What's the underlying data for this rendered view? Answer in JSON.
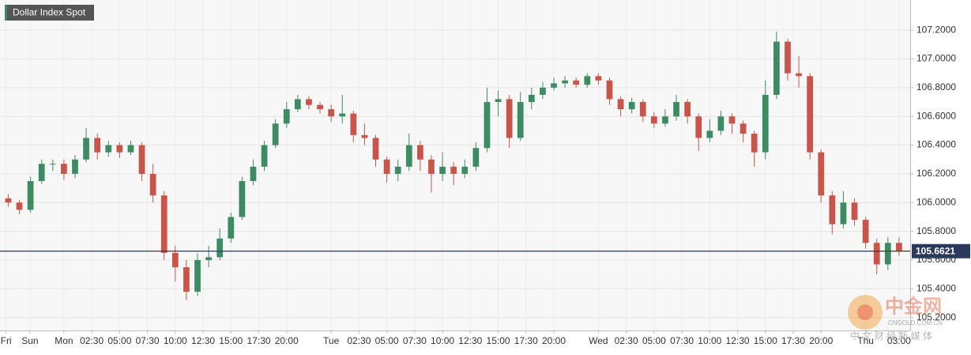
{
  "chart_data": {
    "type": "candlestick",
    "title": "Dollar Index Spot",
    "x": [
      -5,
      -4,
      -3,
      -2,
      -1,
      0,
      1,
      2,
      3,
      4,
      5,
      6,
      7,
      8,
      9,
      10,
      11,
      12,
      13,
      14,
      15,
      16,
      17,
      18,
      19,
      20,
      21,
      22,
      23,
      24,
      25,
      26,
      27,
      28,
      29,
      30,
      31,
      32,
      33,
      34,
      35,
      36,
      37,
      38,
      39,
      40,
      41,
      42,
      43,
      44,
      45,
      46,
      47,
      48,
      49,
      50,
      51,
      52,
      53,
      54,
      55,
      56,
      57,
      58,
      59,
      60,
      61,
      62,
      63,
      64,
      65,
      66,
      67,
      68,
      69,
      70,
      71,
      72,
      73,
      74,
      75
    ],
    "open": [
      106.03,
      106.0,
      105.95,
      106.15,
      106.27,
      106.27,
      106.2,
      106.3,
      106.45,
      106.35,
      106.4,
      106.35,
      106.4,
      106.2,
      106.05,
      105.65,
      105.55,
      105.38,
      105.6,
      105.62,
      105.75,
      105.9,
      106.15,
      106.25,
      106.4,
      106.55,
      106.65,
      106.72,
      106.68,
      106.65,
      106.6,
      106.62,
      106.47,
      106.45,
      106.3,
      106.2,
      106.25,
      106.4,
      106.3,
      106.2,
      106.25,
      106.2,
      106.25,
      106.38,
      106.7,
      106.72,
      106.45,
      106.7,
      106.75,
      106.8,
      106.83,
      106.85,
      106.82,
      106.88,
      106.85,
      106.72,
      106.65,
      106.7,
      106.6,
      106.55,
      106.6,
      106.7,
      106.6,
      106.45,
      106.5,
      106.6,
      106.55,
      106.48,
      106.35,
      106.75,
      107.12,
      106.9,
      106.88,
      106.35,
      106.05,
      105.85,
      106.0,
      105.88,
      105.72,
      105.57,
      105.72
    ],
    "high": [
      106.06,
      106.02,
      106.18,
      106.3,
      106.3,
      106.3,
      106.33,
      106.52,
      106.48,
      106.43,
      106.42,
      106.43,
      106.42,
      106.27,
      106.08,
      105.7,
      105.6,
      105.65,
      105.7,
      105.82,
      105.93,
      106.18,
      106.3,
      106.43,
      106.58,
      106.7,
      106.75,
      106.74,
      106.7,
      106.68,
      106.75,
      106.64,
      106.55,
      106.47,
      106.32,
      106.3,
      106.48,
      106.43,
      106.33,
      106.35,
      106.28,
      106.3,
      106.42,
      106.8,
      106.78,
      106.75,
      106.77,
      106.8,
      106.84,
      106.87,
      106.88,
      106.87,
      106.9,
      106.9,
      106.87,
      106.74,
      106.73,
      106.72,
      106.63,
      106.65,
      106.75,
      106.72,
      106.62,
      106.58,
      106.64,
      106.62,
      106.57,
      106.5,
      106.85,
      107.19,
      107.14,
      107.02,
      106.9,
      106.37,
      106.08,
      106.08,
      106.03,
      105.9,
      105.75,
      105.76,
      105.76
    ],
    "low": [
      105.97,
      105.92,
      105.93,
      106.13,
      106.22,
      106.16,
      106.17,
      106.28,
      106.3,
      106.32,
      106.31,
      106.33,
      106.15,
      106.0,
      105.6,
      105.45,
      105.32,
      105.35,
      105.55,
      105.6,
      105.72,
      105.88,
      106.12,
      106.22,
      106.38,
      106.52,
      106.63,
      106.65,
      106.62,
      106.56,
      106.55,
      106.42,
      106.4,
      106.25,
      106.14,
      106.15,
      106.22,
      106.22,
      106.07,
      106.15,
      106.12,
      106.17,
      106.22,
      106.35,
      106.6,
      106.38,
      106.43,
      106.65,
      106.72,
      106.78,
      106.8,
      106.8,
      106.8,
      106.82,
      106.68,
      106.6,
      106.62,
      106.56,
      106.52,
      106.53,
      106.57,
      106.55,
      106.36,
      106.42,
      106.47,
      106.48,
      106.42,
      106.25,
      106.3,
      106.72,
      106.85,
      106.8,
      106.3,
      106.0,
      105.78,
      105.82,
      105.84,
      105.68,
      105.5,
      105.53,
      105.63
    ],
    "close": [
      106.0,
      105.95,
      106.15,
      106.27,
      106.27,
      106.2,
      106.3,
      106.45,
      106.35,
      106.4,
      106.35,
      106.4,
      106.2,
      106.05,
      105.65,
      105.55,
      105.38,
      105.6,
      105.62,
      105.75,
      105.9,
      106.15,
      106.25,
      106.4,
      106.55,
      106.65,
      106.72,
      106.68,
      106.65,
      106.6,
      106.62,
      106.47,
      106.45,
      106.3,
      106.2,
      106.25,
      106.4,
      106.3,
      106.2,
      106.25,
      106.2,
      106.25,
      106.38,
      106.7,
      106.72,
      106.45,
      106.7,
      106.75,
      106.8,
      106.83,
      106.85,
      106.82,
      106.88,
      106.85,
      106.72,
      106.65,
      106.7,
      106.6,
      106.55,
      106.6,
      106.7,
      106.6,
      106.45,
      106.5,
      106.6,
      106.55,
      106.48,
      106.35,
      106.75,
      107.12,
      106.9,
      106.88,
      106.35,
      106.05,
      105.85,
      106.0,
      105.88,
      105.72,
      105.57,
      105.72,
      105.66
    ],
    "up_color": "#3d8b63",
    "down_color": "#c9554a",
    "xlim": [
      -5.74,
      76
    ],
    "ylim": [
      105.11,
      107.41
    ],
    "xticks": [
      {
        "value": -5.2,
        "label": "Fri"
      },
      {
        "value": -3.05,
        "label": "Sun"
      },
      {
        "value": 0,
        "label": "Mon"
      },
      {
        "value": 2.5,
        "label": "02:30"
      },
      {
        "value": 5,
        "label": "05:00"
      },
      {
        "value": 7.5,
        "label": "07:30"
      },
      {
        "value": 10,
        "label": "10:00"
      },
      {
        "value": 12.5,
        "label": "12:30"
      },
      {
        "value": 15,
        "label": "15:00"
      },
      {
        "value": 17.5,
        "label": "17:30"
      },
      {
        "value": 20,
        "label": "20:00"
      },
      {
        "value": 24,
        "label": "Tue"
      },
      {
        "value": 26.5,
        "label": "02:30"
      },
      {
        "value": 29,
        "label": "05:00"
      },
      {
        "value": 31.5,
        "label": "07:30"
      },
      {
        "value": 34,
        "label": "10:00"
      },
      {
        "value": 36.5,
        "label": "12:30"
      },
      {
        "value": 39,
        "label": "15:00"
      },
      {
        "value": 41.5,
        "label": "17:30"
      },
      {
        "value": 44,
        "label": "20:00"
      },
      {
        "value": 48,
        "label": "Wed"
      },
      {
        "value": 50.5,
        "label": "02:30"
      },
      {
        "value": 53,
        "label": "05:00"
      },
      {
        "value": 55.5,
        "label": "07:30"
      },
      {
        "value": 58,
        "label": "10:00"
      },
      {
        "value": 60.5,
        "label": "12:30"
      },
      {
        "value": 63,
        "label": "15:00"
      },
      {
        "value": 65.5,
        "label": "17:30"
      },
      {
        "value": 68,
        "label": "20:00"
      },
      {
        "value": 72,
        "label": "Thu"
      },
      {
        "value": 75,
        "label": "03:00"
      }
    ],
    "yticks": [
      {
        "value": 105.2,
        "label": "105.2000"
      },
      {
        "value": 105.4,
        "label": "105.4000"
      },
      {
        "value": 105.6,
        "label": "105.6000"
      },
      {
        "value": 105.8,
        "label": "105.8000"
      },
      {
        "value": 106.0,
        "label": "106.0000"
      },
      {
        "value": 106.2,
        "label": "106.2000"
      },
      {
        "value": 106.4,
        "label": "106.4000"
      },
      {
        "value": 106.6,
        "label": "106.6000"
      },
      {
        "value": 106.8,
        "label": "106.8000"
      },
      {
        "value": 107.0,
        "label": "107.0000"
      },
      {
        "value": 107.2,
        "label": "107.2000"
      }
    ],
    "last_price": {
      "value": 105.6621,
      "label": "105.6621"
    },
    "last_price_color": "#2b3a5c",
    "grid": true
  },
  "watermark": {
    "logo": "中金网",
    "domain": "CNGOLD.COM.CN",
    "slogan": "中 文 财 经 新 媒 体"
  }
}
